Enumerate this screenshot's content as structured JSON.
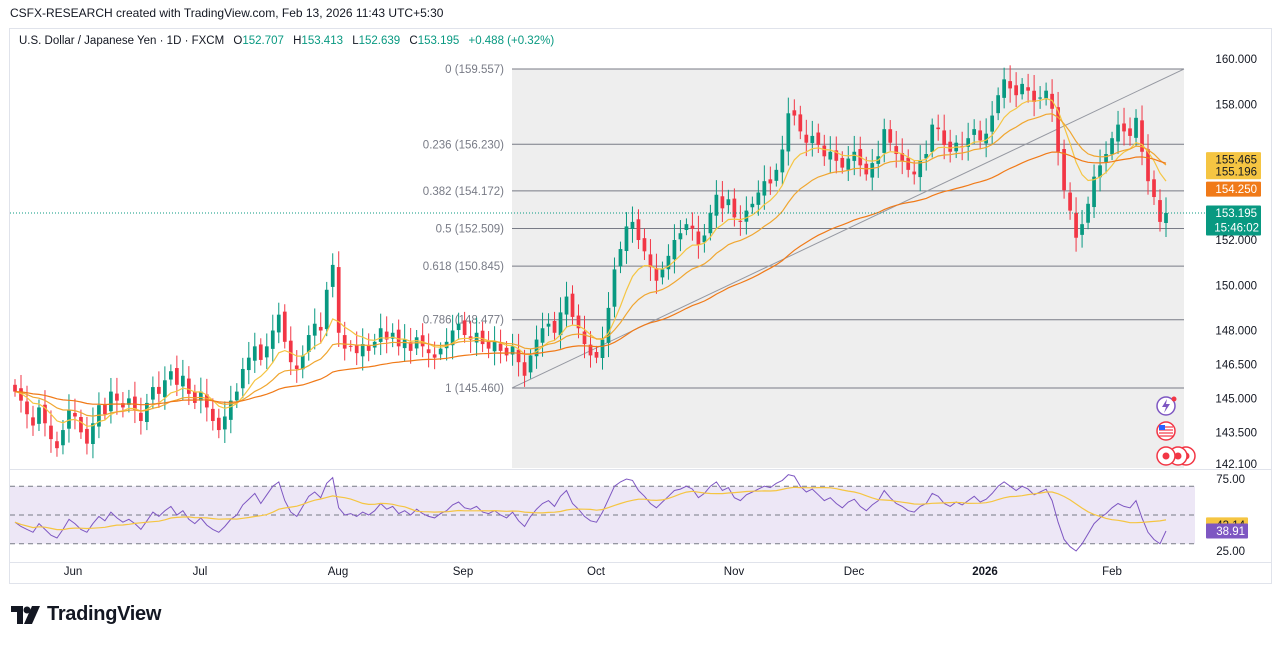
{
  "caption": "CSFX-RESEARCH created with TradingView.com, Feb 13, 2026 11:43 UTC+5:30",
  "legend": {
    "symbol": "U.S. Dollar / Japanese Yen · 1D · FXCM",
    "open_label": "O",
    "open": "152.707",
    "high_label": "H",
    "high": "153.413",
    "low_label": "L",
    "low": "152.639",
    "close_label": "C",
    "close": "153.195",
    "change": "+0.488 (+0.32%)"
  },
  "brand": "TradingView",
  "colors": {
    "up": "#089981",
    "down": "#f23645",
    "ma_fast": "#f5c542",
    "ma_mid": "#f0a630",
    "ma_slow": "#f07a18",
    "fib_zone": "#ebebeb",
    "fib_line": "#787b86",
    "rsi_line": "#7e57c2",
    "rsi_ma": "#f5c542",
    "rsi_band": "#ede7f6"
  },
  "chart_data": [
    {
      "type": "candlestick",
      "title": "U.S. Dollar / Japanese Yen · 1D · FXCM",
      "x_ticks": [
        "Jun",
        "Jul",
        "Aug",
        "Sep",
        "Oct",
        "Nov",
        "Dec",
        "2026",
        "Feb"
      ],
      "y_ticks": [
        "160.000",
        "158.000",
        "155.465",
        "155.196",
        "154.250",
        "153.195",
        "152.000",
        "150.000",
        "148.000",
        "146.500",
        "145.000",
        "143.500",
        "142.100"
      ],
      "ylim": [
        142.1,
        160.0
      ],
      "price_labels": [
        {
          "value": "155.465",
          "color": "#f5c542",
          "text_color": "#131722"
        },
        {
          "value": "155.196",
          "color": "#f5c542",
          "text_color": "#131722"
        },
        {
          "value": "154.250",
          "color": "#f07a18",
          "text_color": "#ffffff"
        },
        {
          "value": "153.195",
          "color": "#089981",
          "text_color": "#ffffff",
          "countdown": "15:46:02"
        }
      ],
      "fibonacci": [
        {
          "level": "0",
          "price": 159.557,
          "label": "0 (159.557)"
        },
        {
          "level": "0.236",
          "price": 156.23,
          "label": "0.236 (156.230)"
        },
        {
          "level": "0.382",
          "price": 154.172,
          "label": "0.382 (154.172)"
        },
        {
          "level": "0.5",
          "price": 152.509,
          "label": "0.5 (152.509)"
        },
        {
          "level": "0.618",
          "price": 150.845,
          "label": "0.618 (150.845)"
        },
        {
          "level": "0.786",
          "price": 148.477,
          "label": "0.786 (148.477)"
        },
        {
          "level": "1",
          "price": 145.46,
          "label": "1 (145.460)"
        }
      ],
      "closes": [
        145.3,
        144.9,
        144.3,
        143.8,
        144.6,
        143.9,
        143.2,
        142.8,
        143.6,
        144.5,
        144.2,
        143.5,
        143.0,
        143.9,
        144.7,
        144.3,
        145.3,
        144.9,
        144.6,
        145.0,
        144.5,
        144.0,
        144.8,
        145.5,
        145.2,
        145.8,
        146.2,
        145.6,
        146.0,
        145.2,
        144.8,
        145.3,
        144.6,
        144.0,
        143.6,
        144.2,
        144.9,
        145.3,
        146.3,
        146.8,
        147.3,
        146.7,
        147.3,
        148.0,
        148.7,
        147.5,
        146.6,
        146.3,
        146.9,
        147.8,
        148.3,
        148.0,
        149.8,
        150.9,
        147.9,
        147.2,
        147.3,
        147.0,
        147.4,
        147.1,
        147.5,
        148.1,
        147.6,
        147.9,
        147.3,
        147.6,
        147.1,
        147.7,
        147.3,
        147.0,
        146.8,
        147.2,
        147.5,
        148.0,
        148.3,
        147.8,
        147.6,
        147.9,
        147.4,
        147.2,
        147.5,
        147.1,
        146.9,
        147.3,
        146.6,
        146.0,
        146.9,
        147.6,
        148.1,
        148.3,
        147.9,
        148.8,
        149.5,
        148.6,
        148.1,
        147.4,
        146.9,
        146.8,
        147.6,
        149.0,
        150.7,
        151.6,
        152.6,
        152.8,
        152.0,
        151.5,
        150.8,
        150.2,
        150.7,
        151.3,
        152.0,
        152.3,
        152.7,
        152.5,
        151.8,
        152.2,
        153.2,
        154.0,
        153.4,
        153.8,
        153.0,
        152.8,
        153.3,
        153.6,
        154.1,
        154.6,
        154.5,
        155.1,
        156.0,
        157.6,
        157.5,
        156.8,
        156.3,
        156.6,
        156.2,
        155.7,
        155.9,
        155.5,
        155.2,
        155.6,
        155.9,
        155.3,
        154.9,
        155.4,
        155.7,
        156.9,
        156.3,
        155.8,
        155.5,
        155.1,
        154.9,
        155.5,
        155.8,
        157.1,
        156.9,
        156.2,
        155.9,
        156.3,
        156.1,
        156.5,
        156.9,
        156.4,
        156.7,
        157.5,
        158.4,
        159.1,
        158.7,
        158.4,
        158.9,
        158.6,
        158.1,
        158.3,
        158.6,
        157.8,
        155.9,
        154.2,
        153.3,
        152.1,
        152.7,
        153.6,
        154.8,
        155.3,
        155.8,
        156.5,
        157.1,
        156.8,
        156.6,
        157.4,
        155.9,
        154.6,
        153.9,
        152.8,
        153.195
      ],
      "series": [
        {
          "name": "",
          "type": "moving-average",
          "color": "#f5c542"
        },
        {
          "name": "",
          "type": "moving-average",
          "color": "#f0a630"
        },
        {
          "name": "",
          "type": "moving-average",
          "color": "#f07a18"
        }
      ]
    },
    {
      "type": "line",
      "title": "",
      "y_ticks": [
        "75.00",
        "43.14",
        "38.91",
        "25.00"
      ],
      "ylim": [
        20,
        80
      ],
      "bands": [
        70,
        50,
        30
      ],
      "value_labels": [
        {
          "value": "43.14",
          "color": "#f5c542",
          "text_color": "#131722"
        },
        {
          "value": "38.91",
          "color": "#7e57c2",
          "text_color": "#ffffff"
        }
      ],
      "series": [
        {
          "name": "",
          "color": "#7e57c2",
          "values": [
            45,
            42,
            40,
            38,
            44,
            40,
            36,
            34,
            40,
            47,
            44,
            40,
            38,
            44,
            49,
            46,
            52,
            48,
            45,
            47,
            44,
            40,
            46,
            52,
            49,
            53,
            56,
            50,
            53,
            47,
            44,
            48,
            43,
            40,
            38,
            42,
            47,
            50,
            57,
            61,
            65,
            58,
            64,
            70,
            73,
            60,
            52,
            49,
            56,
            63,
            66,
            62,
            72,
            76,
            55,
            50,
            51,
            49,
            52,
            50,
            53,
            58,
            54,
            56,
            51,
            53,
            50,
            54,
            51,
            49,
            48,
            51,
            53,
            57,
            59,
            55,
            54,
            56,
            52,
            51,
            53,
            50,
            48,
            52,
            46,
            42,
            49,
            54,
            58,
            60,
            56,
            63,
            67,
            58,
            54,
            49,
            46,
            45,
            52,
            61,
            70,
            73,
            75,
            74,
            67,
            63,
            58,
            55,
            59,
            63,
            67,
            68,
            70,
            68,
            62,
            65,
            70,
            73,
            67,
            69,
            62,
            60,
            64,
            66,
            68,
            70,
            69,
            72,
            74,
            78,
            77,
            70,
            66,
            68,
            64,
            60,
            62,
            58,
            55,
            59,
            61,
            56,
            53,
            57,
            60,
            67,
            62,
            58,
            56,
            53,
            52,
            56,
            58,
            65,
            63,
            58,
            56,
            59,
            57,
            60,
            63,
            59,
            61,
            65,
            70,
            73,
            70,
            67,
            70,
            68,
            64,
            66,
            68,
            60,
            45,
            33,
            28,
            25,
            30,
            37,
            44,
            48,
            51,
            55,
            58,
            56,
            55,
            60,
            48,
            38,
            33,
            30,
            38.91
          ]
        },
        {
          "name": "",
          "color": "#f5c542",
          "type": "moving-average"
        }
      ]
    }
  ]
}
